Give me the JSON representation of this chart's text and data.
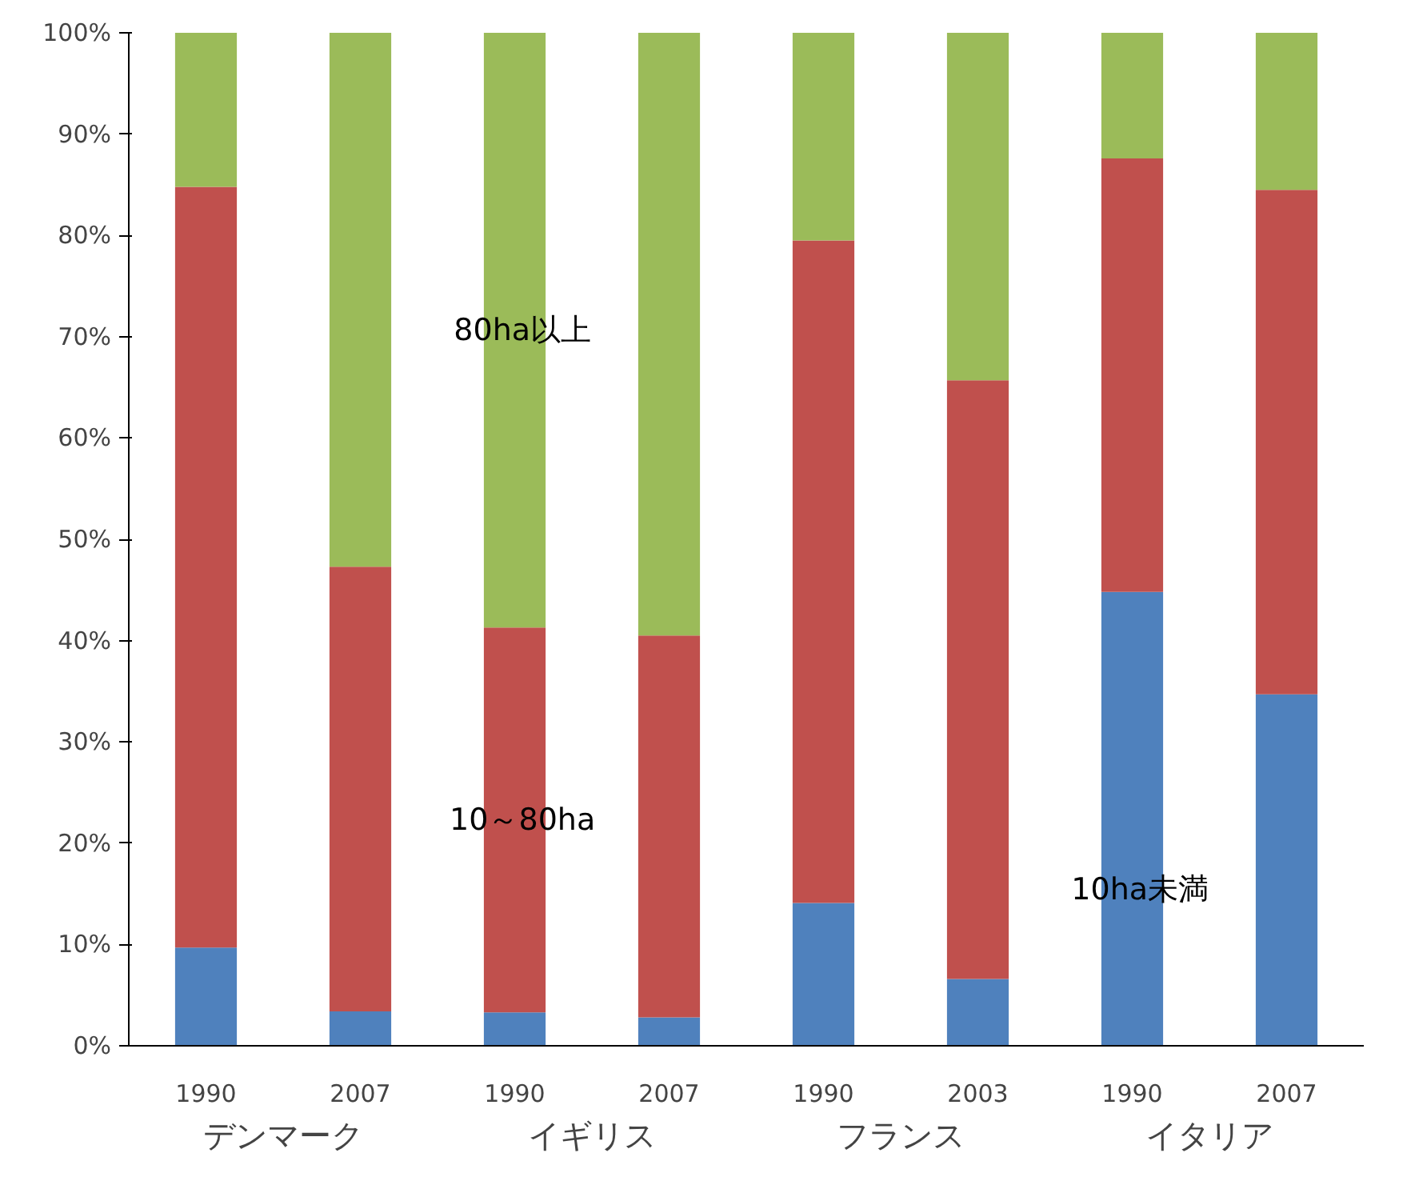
{
  "chart_data": {
    "type": "bar",
    "stacked": true,
    "categories": [
      "1990",
      "2007",
      "1990",
      "2007",
      "1990",
      "2003",
      "1990",
      "2007"
    ],
    "series": [
      {
        "name": "10ha未満",
        "color": "#4f81bd",
        "values": [
          9.7,
          3.4,
          3.3,
          2.8,
          14.1,
          6.6,
          44.8,
          34.7
        ]
      },
      {
        "name": "10～80ha",
        "color": "#c0504d",
        "values": [
          75.1,
          43.9,
          38.0,
          37.7,
          65.4,
          59.1,
          42.8,
          49.8
        ]
      },
      {
        "name": "80ha以上",
        "color": "#9bbb59",
        "values": [
          15.2,
          52.7,
          58.7,
          59.5,
          20.5,
          34.3,
          12.4,
          15.5
        ]
      }
    ],
    "ylim": [
      0,
      100
    ],
    "yticks": [
      {
        "value": 0,
        "label": "0%"
      },
      {
        "value": 10,
        "label": "10%"
      },
      {
        "value": 20,
        "label": "20%"
      },
      {
        "value": 30,
        "label": "30%"
      },
      {
        "value": 40,
        "label": "40%"
      },
      {
        "value": 50,
        "label": "50%"
      },
      {
        "value": 60,
        "label": "60%"
      },
      {
        "value": 70,
        "label": "70%"
      },
      {
        "value": 80,
        "label": "80%"
      },
      {
        "value": 90,
        "label": "90%"
      },
      {
        "value": 100,
        "label": "100%"
      }
    ],
    "annotations": [
      "デンマーク",
      "イギリス",
      "フランス",
      "イタリア"
    ],
    "grid": false
  }
}
